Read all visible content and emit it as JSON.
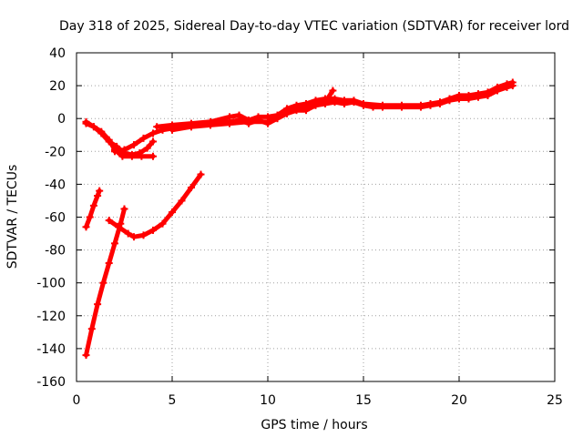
{
  "chart_data": {
    "type": "scatter",
    "title": "Day 318 of 2025, Sidereal Day-to-day VTEC variation (SDTVAR) for receiver lord",
    "xlabel": "GPS time / hours",
    "ylabel": "SDTVAR / TECUs",
    "xlim": [
      0,
      25
    ],
    "ylim": [
      -160,
      40
    ],
    "xticks": [
      0,
      5,
      10,
      15,
      20,
      25
    ],
    "yticks": [
      -160,
      -140,
      -120,
      -100,
      -80,
      -60,
      -40,
      -20,
      0,
      20,
      40
    ],
    "grid": true,
    "legend": "none",
    "marker": "plus",
    "color": "#ff0000",
    "series": [
      {
        "points": [
          [
            0.5,
            -3
          ],
          [
            0.9,
            -5
          ],
          [
            1.3,
            -9
          ],
          [
            1.7,
            -14
          ],
          [
            2.1,
            -17
          ],
          [
            2.5,
            -21
          ],
          [
            2.9,
            -22
          ],
          [
            3.3,
            -21
          ],
          [
            3.7,
            -18
          ],
          [
            4.0,
            -14
          ]
        ]
      },
      {
        "points": [
          [
            0.5,
            -2
          ],
          [
            0.9,
            -5
          ],
          [
            1.3,
            -8
          ],
          [
            1.7,
            -13
          ],
          [
            2.0,
            -19
          ],
          [
            2.4,
            -23
          ],
          [
            2.9,
            -23
          ],
          [
            3.4,
            -23
          ],
          [
            4.0,
            -23
          ]
        ]
      },
      {
        "points": [
          [
            2.0,
            -20
          ],
          [
            2.5,
            -19
          ],
          [
            3.0,
            -16
          ],
          [
            3.5,
            -12
          ],
          [
            4.0,
            -9
          ],
          [
            4.5,
            -7
          ],
          [
            5.0,
            -6
          ],
          [
            6.0,
            -5
          ],
          [
            7.0,
            -3
          ],
          [
            8.0,
            -2
          ],
          [
            8.5,
            -1
          ],
          [
            9.0,
            -3
          ],
          [
            9.5,
            -1
          ],
          [
            10.0,
            -3
          ],
          [
            10.5,
            0
          ],
          [
            11.0,
            3
          ],
          [
            11.5,
            5
          ],
          [
            12.0,
            5
          ],
          [
            12.5,
            8
          ],
          [
            13.0,
            9
          ],
          [
            13.5,
            10
          ],
          [
            14.0,
            9
          ],
          [
            14.5,
            10
          ],
          [
            15.0,
            8
          ],
          [
            15.5,
            7
          ],
          [
            16.0,
            7
          ],
          [
            17.0,
            7
          ],
          [
            18.0,
            7
          ],
          [
            18.5,
            8
          ],
          [
            19.0,
            9
          ],
          [
            19.5,
            11
          ],
          [
            20.0,
            12
          ],
          [
            20.5,
            12
          ],
          [
            21.0,
            13
          ],
          [
            21.5,
            14
          ],
          [
            22.0,
            17
          ],
          [
            22.5,
            19
          ],
          [
            22.8,
            20
          ]
        ]
      },
      {
        "points": [
          [
            4.2,
            -5
          ],
          [
            5.0,
            -4
          ],
          [
            6.0,
            -3
          ],
          [
            7.0,
            -2
          ],
          [
            8.0,
            1
          ],
          [
            8.5,
            2
          ],
          [
            9.0,
            -1
          ],
          [
            9.5,
            1
          ],
          [
            10.0,
            1
          ],
          [
            10.5,
            2
          ],
          [
            11.0,
            6
          ],
          [
            11.5,
            8
          ],
          [
            12.0,
            9
          ],
          [
            12.5,
            11
          ],
          [
            13.0,
            12
          ],
          [
            13.5,
            12
          ],
          [
            14.0,
            11
          ],
          [
            14.5,
            11
          ],
          [
            15.0,
            9
          ],
          [
            16.0,
            8
          ],
          [
            17.0,
            8
          ],
          [
            18.0,
            8
          ],
          [
            18.5,
            9
          ],
          [
            19.0,
            10
          ],
          [
            19.5,
            12
          ],
          [
            20.0,
            14
          ],
          [
            20.5,
            14
          ],
          [
            21.0,
            15
          ],
          [
            21.5,
            16
          ],
          [
            22.0,
            19
          ],
          [
            22.5,
            21
          ],
          [
            22.8,
            22
          ]
        ]
      },
      {
        "points": [
          [
            5.0,
            -7
          ],
          [
            6.0,
            -5
          ],
          [
            7.0,
            -4
          ],
          [
            8.0,
            -3
          ],
          [
            9.0,
            -2
          ],
          [
            10.0,
            -2
          ],
          [
            10.5,
            1
          ],
          [
            11.0,
            5
          ],
          [
            11.5,
            6
          ],
          [
            12.0,
            7
          ],
          [
            12.5,
            9
          ],
          [
            13.0,
            10
          ],
          [
            13.4,
            17
          ]
        ]
      },
      {
        "points": [
          [
            0.5,
            -66
          ],
          [
            0.7,
            -60
          ],
          [
            0.9,
            -53
          ],
          [
            1.1,
            -47
          ],
          [
            1.2,
            -44
          ]
        ]
      },
      {
        "points": [
          [
            0.5,
            -144
          ],
          [
            0.8,
            -128
          ],
          [
            1.1,
            -113
          ],
          [
            1.4,
            -100
          ],
          [
            1.7,
            -88
          ],
          [
            2.0,
            -76
          ],
          [
            2.3,
            -64
          ],
          [
            2.5,
            -55
          ]
        ]
      },
      {
        "points": [
          [
            1.7,
            -62
          ],
          [
            2.2,
            -66
          ],
          [
            2.7,
            -70
          ],
          [
            3.0,
            -72
          ],
          [
            3.5,
            -71
          ],
          [
            4.0,
            -68
          ],
          [
            4.5,
            -64
          ],
          [
            5.0,
            -57
          ],
          [
            5.5,
            -50
          ],
          [
            6.0,
            -42
          ],
          [
            6.5,
            -34
          ]
        ]
      }
    ]
  }
}
